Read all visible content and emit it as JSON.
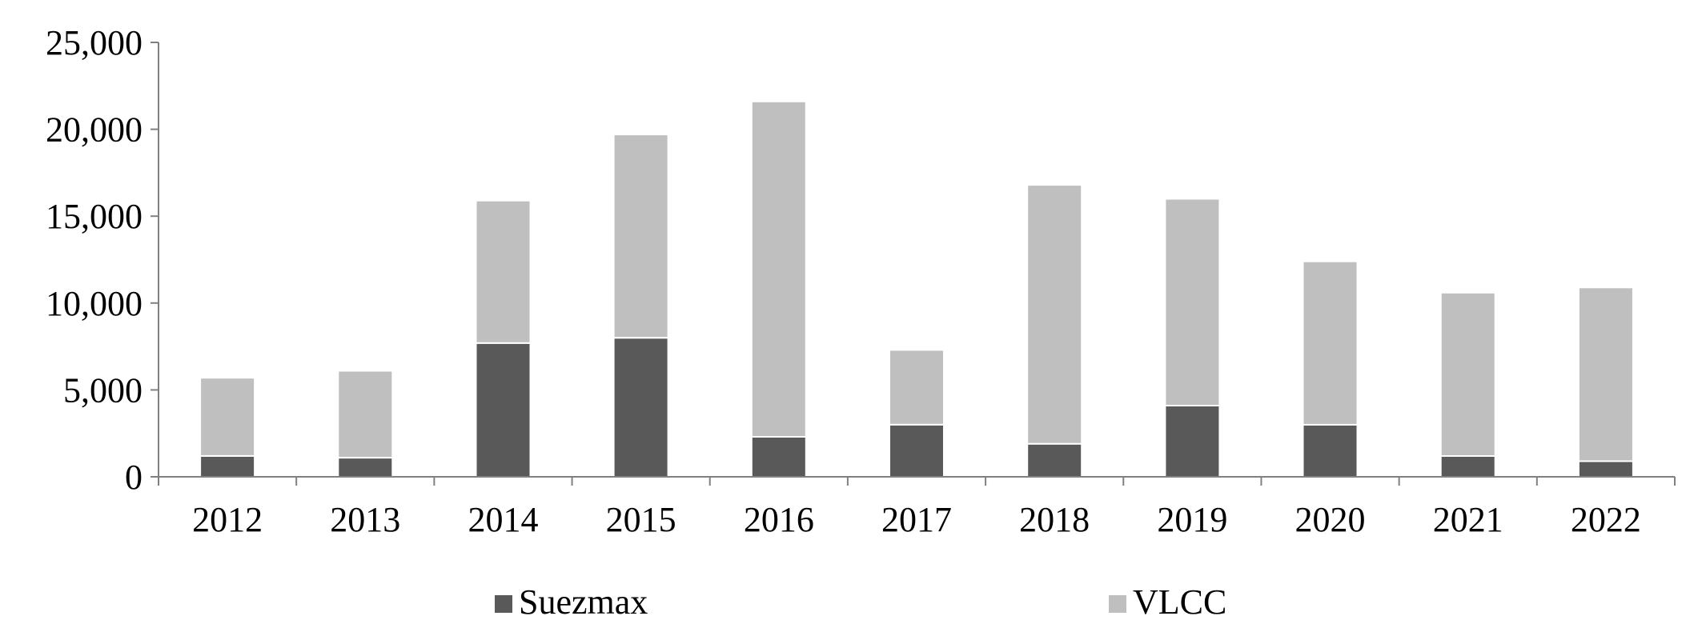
{
  "chart_data": {
    "type": "bar",
    "stacked": true,
    "categories": [
      "2012",
      "2013",
      "2014",
      "2015",
      "2016",
      "2017",
      "2018",
      "2019",
      "2020",
      "2021",
      "2022"
    ],
    "series": [
      {
        "name": "Suezmax",
        "color": "#595959",
        "values": [
          1200,
          1100,
          7700,
          8000,
          2300,
          3000,
          1900,
          4100,
          3000,
          1200,
          900
        ]
      },
      {
        "name": "VLCC",
        "color": "#bfbfbf",
        "values": [
          4500,
          5000,
          8200,
          11700,
          19300,
          4300,
          14900,
          11900,
          9400,
          9400,
          10000
        ]
      }
    ],
    "ylim": [
      0,
      25000
    ],
    "yticks": [
      0,
      5000,
      10000,
      15000,
      20000,
      25000
    ],
    "ytick_labels": [
      "0",
      "5,000",
      "10,000",
      "15,000",
      "20,000",
      "25,000"
    ],
    "grid": false,
    "legend_position": "bottom",
    "axis_color": "#808080"
  }
}
